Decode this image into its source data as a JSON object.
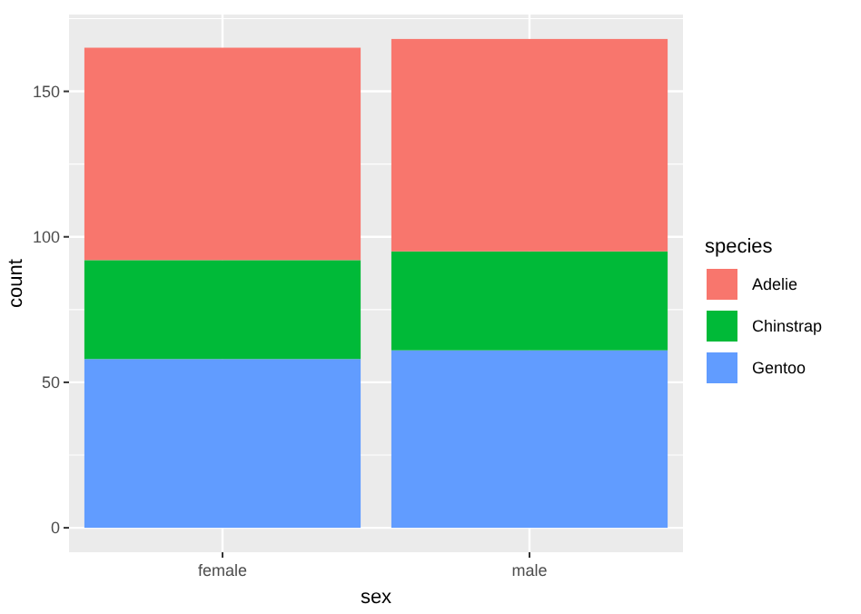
{
  "chart_data": {
    "type": "bar",
    "stacked": true,
    "xlabel": "sex",
    "ylabel": "count",
    "legend_title": "species",
    "legend": "right",
    "grid": true,
    "categories": [
      "female",
      "male"
    ],
    "series": [
      {
        "name": "Gentoo",
        "color": "#619cff",
        "values": [
          58,
          61
        ]
      },
      {
        "name": "Chinstrap",
        "color": "#00ba38",
        "values": [
          34,
          34
        ]
      },
      {
        "name": "Adelie",
        "color": "#f8766d",
        "values": [
          73,
          73
        ]
      }
    ],
    "ylim": [
      -8.4,
      176.4
    ],
    "yticks": [
      0,
      50,
      100,
      150
    ]
  }
}
